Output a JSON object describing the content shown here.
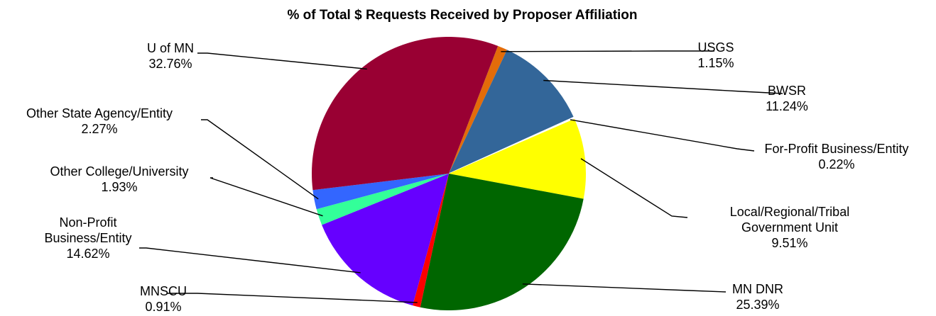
{
  "chart_data": {
    "type": "pie",
    "title": "% of Total $ Requests Received by Proposer Affiliation",
    "slices": [
      {
        "name": "USGS",
        "label_lines": [
          "USGS"
        ],
        "percent_label": "1.15%",
        "value": 1.15,
        "color": "#E36C0A"
      },
      {
        "name": "BWSR",
        "label_lines": [
          "BWSR"
        ],
        "percent_label": "11.24%",
        "value": 11.24,
        "color": "#336699"
      },
      {
        "name": "For-Profit Business/Entity",
        "label_lines": [
          "For-Profit Business/Entity"
        ],
        "percent_label": "0.22%",
        "value": 0.22,
        "color": "#FFFFFF"
      },
      {
        "name": "Local/Regional/Tribal Government Unit",
        "label_lines": [
          "Local/Regional/Tribal",
          "Government Unit"
        ],
        "percent_label": "9.51%",
        "value": 9.51,
        "color": "#FFFF00"
      },
      {
        "name": "MN DNR",
        "label_lines": [
          "MN DNR"
        ],
        "percent_label": "25.39%",
        "value": 25.39,
        "color": "#006600"
      },
      {
        "name": "MNSCU",
        "label_lines": [
          "MNSCU"
        ],
        "percent_label": "0.91%",
        "value": 0.91,
        "color": "#FF0000"
      },
      {
        "name": "Non-Profit Business/Entity",
        "label_lines": [
          "Non-Profit",
          "Business/Entity"
        ],
        "percent_label": "14.62%",
        "value": 14.62,
        "color": "#6600FF"
      },
      {
        "name": "Other College/University",
        "label_lines": [
          "Other College/University"
        ],
        "percent_label": "1.93%",
        "value": 1.93,
        "color": "#33FF99"
      },
      {
        "name": "Other State Agency/Entity",
        "label_lines": [
          "Other State Agency/Entity"
        ],
        "percent_label": "2.27%",
        "value": 2.27,
        "color": "#3366FF"
      },
      {
        "name": "U of MN",
        "label_lines": [
          "U of MN"
        ],
        "percent_label": "32.76%",
        "value": 32.76,
        "color": "#990033"
      }
    ],
    "start_angle_deg": 69,
    "direction": "clockwise"
  }
}
